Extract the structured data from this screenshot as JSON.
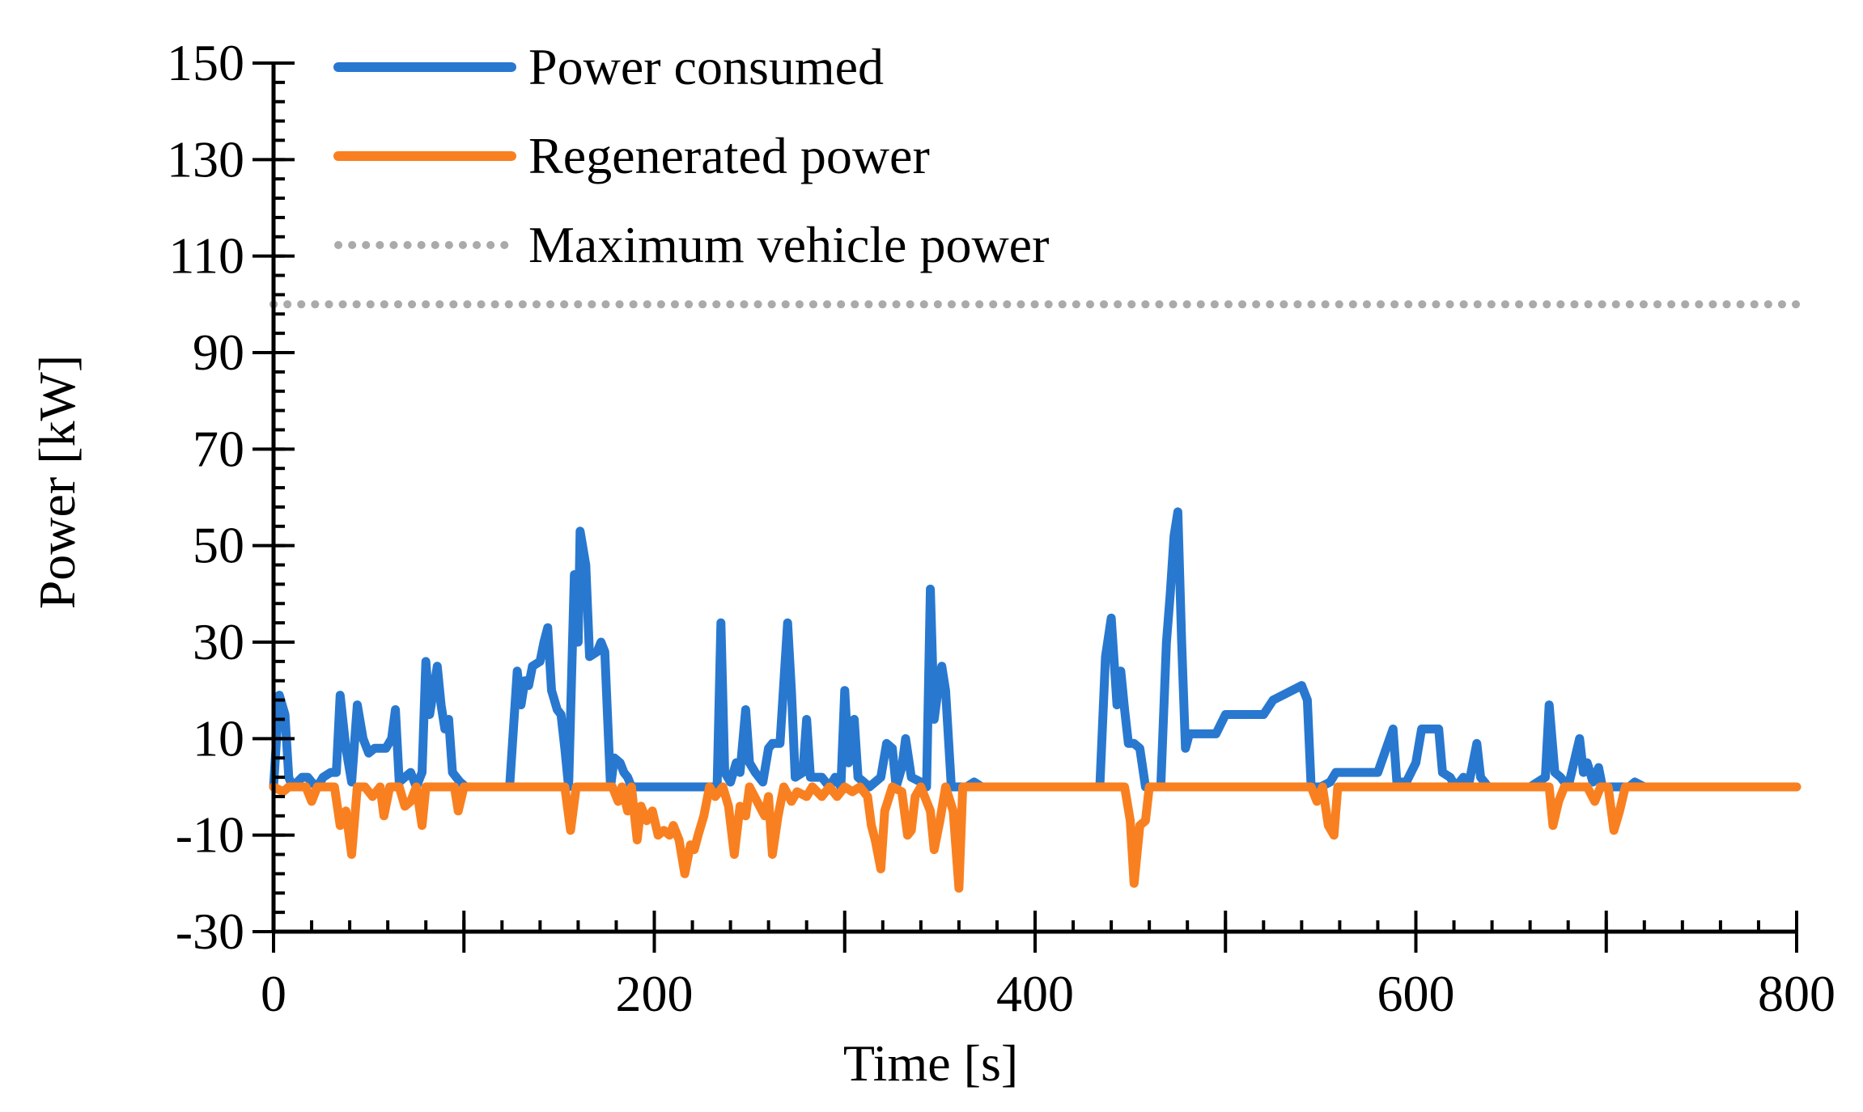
{
  "chart_data": {
    "type": "line",
    "xlabel": "Time [s]",
    "ylabel": "Power [kW]",
    "xlim": [
      0,
      800
    ],
    "ylim": [
      -30,
      150
    ],
    "x_ticks": [
      0,
      200,
      400,
      600,
      800
    ],
    "y_ticks": [
      -30,
      -10,
      10,
      30,
      50,
      70,
      90,
      110,
      130,
      150
    ],
    "grid": false,
    "legend_position": "top-left",
    "series": [
      {
        "name": "Power consumed",
        "color": "#2878d0",
        "style": "solid",
        "points": [
          [
            0,
            0
          ],
          [
            3,
            19
          ],
          [
            6,
            15
          ],
          [
            8,
            2
          ],
          [
            10,
            0
          ],
          [
            15,
            2
          ],
          [
            18,
            2
          ],
          [
            20,
            1
          ],
          [
            23,
            0
          ],
          [
            26,
            2
          ],
          [
            30,
            3
          ],
          [
            33,
            3
          ],
          [
            35,
            19
          ],
          [
            38,
            8
          ],
          [
            41,
            1
          ],
          [
            44,
            17
          ],
          [
            47,
            10
          ],
          [
            50,
            7
          ],
          [
            53,
            8
          ],
          [
            56,
            8
          ],
          [
            59,
            8
          ],
          [
            62,
            10
          ],
          [
            64,
            16
          ],
          [
            66,
            1
          ],
          [
            69,
            2
          ],
          [
            72,
            3
          ],
          [
            75,
            0
          ],
          [
            78,
            3
          ],
          [
            80,
            26
          ],
          [
            82,
            15
          ],
          [
            84,
            20
          ],
          [
            86,
            25
          ],
          [
            88,
            17
          ],
          [
            90,
            12
          ],
          [
            92,
            14
          ],
          [
            94,
            3
          ],
          [
            96,
            2
          ],
          [
            98,
            1
          ],
          [
            101,
            0
          ],
          [
            105,
            0
          ],
          [
            124,
            0
          ],
          [
            128,
            24
          ],
          [
            130,
            17
          ],
          [
            132,
            22
          ],
          [
            134,
            21
          ],
          [
            136,
            25
          ],
          [
            140,
            26
          ],
          [
            142,
            30
          ],
          [
            144,
            33
          ],
          [
            146,
            20
          ],
          [
            149,
            16
          ],
          [
            151,
            15
          ],
          [
            153,
            8
          ],
          [
            155,
            0
          ],
          [
            158,
            44
          ],
          [
            160,
            30
          ],
          [
            161,
            53
          ],
          [
            164,
            46
          ],
          [
            166,
            27
          ],
          [
            170,
            28
          ],
          [
            172,
            30
          ],
          [
            174,
            28
          ],
          [
            177,
            0
          ],
          [
            179,
            6
          ],
          [
            182,
            5
          ],
          [
            184,
            3
          ],
          [
            186,
            2
          ],
          [
            188,
            0
          ],
          [
            192,
            0
          ],
          [
            228,
            0
          ],
          [
            233,
            0
          ],
          [
            235,
            34
          ],
          [
            237,
            3
          ],
          [
            240,
            1
          ],
          [
            243,
            5
          ],
          [
            245,
            3
          ],
          [
            248,
            16
          ],
          [
            250,
            5
          ],
          [
            253,
            3
          ],
          [
            257,
            1
          ],
          [
            260,
            8
          ],
          [
            262,
            9
          ],
          [
            266,
            9
          ],
          [
            270,
            34
          ],
          [
            272,
            20
          ],
          [
            274,
            2
          ],
          [
            278,
            3
          ],
          [
            280,
            14
          ],
          [
            282,
            2
          ],
          [
            285,
            2
          ],
          [
            288,
            2
          ],
          [
            292,
            0
          ],
          [
            295,
            2
          ],
          [
            298,
            0
          ],
          [
            300,
            20
          ],
          [
            302,
            5
          ],
          [
            305,
            14
          ],
          [
            307,
            2
          ],
          [
            310,
            1
          ],
          [
            313,
            0
          ],
          [
            316,
            1
          ],
          [
            319,
            2
          ],
          [
            322,
            9
          ],
          [
            325,
            8
          ],
          [
            327,
            0
          ],
          [
            330,
            4
          ],
          [
            332,
            10
          ],
          [
            335,
            2
          ],
          [
            340,
            1
          ],
          [
            343,
            0
          ],
          [
            345,
            41
          ],
          [
            347,
            14
          ],
          [
            349,
            20
          ],
          [
            351,
            25
          ],
          [
            353,
            20
          ],
          [
            356,
            0
          ],
          [
            360,
            0
          ],
          [
            364,
            0
          ],
          [
            368,
            1
          ],
          [
            372,
            0
          ],
          [
            380,
            0
          ],
          [
            400,
            0
          ],
          [
            434,
            0
          ],
          [
            437,
            27
          ],
          [
            440,
            35
          ],
          [
            443,
            17
          ],
          [
            445,
            24
          ],
          [
            447,
            16
          ],
          [
            449,
            9
          ],
          [
            452,
            9
          ],
          [
            455,
            8
          ],
          [
            458,
            0
          ],
          [
            462,
            0
          ],
          [
            466,
            0
          ],
          [
            469,
            30
          ],
          [
            471,
            40
          ],
          [
            473,
            52
          ],
          [
            475,
            57
          ],
          [
            477,
            30
          ],
          [
            479,
            8
          ],
          [
            481,
            11
          ],
          [
            495,
            11
          ],
          [
            500,
            15
          ],
          [
            520,
            15
          ],
          [
            525,
            18
          ],
          [
            540,
            21
          ],
          [
            543,
            18
          ],
          [
            545,
            0
          ],
          [
            550,
            0
          ],
          [
            555,
            1
          ],
          [
            558,
            3
          ],
          [
            580,
            3
          ],
          [
            588,
            12
          ],
          [
            590,
            1
          ],
          [
            595,
            1
          ],
          [
            600,
            5
          ],
          [
            603,
            12
          ],
          [
            608,
            12
          ],
          [
            612,
            12
          ],
          [
            614,
            3
          ],
          [
            618,
            2
          ],
          [
            621,
            0
          ],
          [
            625,
            2
          ],
          [
            628,
            1
          ],
          [
            632,
            9
          ],
          [
            634,
            2
          ],
          [
            638,
            0
          ],
          [
            660,
            0
          ],
          [
            668,
            2
          ],
          [
            670,
            17
          ],
          [
            673,
            3
          ],
          [
            676,
            2
          ],
          [
            680,
            0
          ],
          [
            686,
            10
          ],
          [
            688,
            3
          ],
          [
            690,
            5
          ],
          [
            693,
            1
          ],
          [
            696,
            4
          ],
          [
            698,
            0
          ],
          [
            700,
            0
          ],
          [
            712,
            0
          ],
          [
            715,
            1
          ],
          [
            720,
            0
          ],
          [
            750,
            0
          ]
        ]
      },
      {
        "name": "Regenerated power",
        "color": "#f98020",
        "style": "solid",
        "points": [
          [
            0,
            0
          ],
          [
            5,
            -1
          ],
          [
            8,
            0
          ],
          [
            12,
            0
          ],
          [
            17,
            0
          ],
          [
            20,
            -3
          ],
          [
            23,
            0
          ],
          [
            28,
            0
          ],
          [
            32,
            0
          ],
          [
            35,
            -8
          ],
          [
            38,
            -5
          ],
          [
            41,
            -14
          ],
          [
            44,
            0
          ],
          [
            48,
            0
          ],
          [
            52,
            -2
          ],
          [
            56,
            0
          ],
          [
            58,
            -6
          ],
          [
            61,
            0
          ],
          [
            66,
            0
          ],
          [
            69,
            -4
          ],
          [
            72,
            -3
          ],
          [
            75,
            0
          ],
          [
            78,
            -8
          ],
          [
            80,
            0
          ],
          [
            85,
            0
          ],
          [
            95,
            0
          ],
          [
            97,
            -5
          ],
          [
            100,
            0
          ],
          [
            140,
            0
          ],
          [
            153,
            0
          ],
          [
            156,
            -9
          ],
          [
            159,
            0
          ],
          [
            170,
            0
          ],
          [
            178,
            0
          ],
          [
            181,
            -3
          ],
          [
            183,
            0
          ],
          [
            186,
            -5
          ],
          [
            188,
            0
          ],
          [
            191,
            -11
          ],
          [
            193,
            -4
          ],
          [
            196,
            -7
          ],
          [
            199,
            -5
          ],
          [
            202,
            -10
          ],
          [
            205,
            -9
          ],
          [
            208,
            -10
          ],
          [
            210,
            -8
          ],
          [
            213,
            -11
          ],
          [
            216,
            -18
          ],
          [
            219,
            -12
          ],
          [
            221,
            -13
          ],
          [
            223,
            -10
          ],
          [
            226,
            -6
          ],
          [
            229,
            0
          ],
          [
            232,
            -2
          ],
          [
            236,
            0
          ],
          [
            239,
            -4
          ],
          [
            242,
            -14
          ],
          [
            245,
            -4
          ],
          [
            248,
            -6
          ],
          [
            250,
            0
          ],
          [
            254,
            -3
          ],
          [
            258,
            -6
          ],
          [
            260,
            -2
          ],
          [
            262,
            -14
          ],
          [
            265,
            -6
          ],
          [
            268,
            0
          ],
          [
            272,
            -3
          ],
          [
            275,
            -1
          ],
          [
            280,
            -2
          ],
          [
            283,
            0
          ],
          [
            288,
            -2
          ],
          [
            292,
            0
          ],
          [
            296,
            -2
          ],
          [
            300,
            0
          ],
          [
            304,
            -1
          ],
          [
            308,
            0
          ],
          [
            312,
            -2
          ],
          [
            314,
            -8
          ],
          [
            316,
            -11
          ],
          [
            319,
            -17
          ],
          [
            321,
            -5
          ],
          [
            325,
            0
          ],
          [
            330,
            -1
          ],
          [
            333,
            -10
          ],
          [
            335,
            -9
          ],
          [
            337,
            -2
          ],
          [
            340,
            0
          ],
          [
            345,
            -5
          ],
          [
            347,
            -13
          ],
          [
            350,
            -7
          ],
          [
            353,
            0
          ],
          [
            357,
            -5
          ],
          [
            360,
            -21
          ],
          [
            362,
            0
          ],
          [
            380,
            0
          ],
          [
            440,
            0
          ],
          [
            447,
            0
          ],
          [
            450,
            -7
          ],
          [
            452,
            -20
          ],
          [
            455,
            -8
          ],
          [
            458,
            -7
          ],
          [
            460,
            0
          ],
          [
            500,
            0
          ],
          [
            545,
            0
          ],
          [
            548,
            -3
          ],
          [
            551,
            0
          ],
          [
            554,
            -8
          ],
          [
            557,
            -10
          ],
          [
            559,
            0
          ],
          [
            570,
            0
          ],
          [
            590,
            0
          ],
          [
            600,
            0
          ],
          [
            650,
            0
          ],
          [
            670,
            0
          ],
          [
            672,
            -8
          ],
          [
            675,
            -3
          ],
          [
            678,
            0
          ],
          [
            690,
            0
          ],
          [
            694,
            -3
          ],
          [
            697,
            0
          ],
          [
            701,
            0
          ],
          [
            704,
            -9
          ],
          [
            707,
            -5
          ],
          [
            710,
            0
          ],
          [
            715,
            0
          ],
          [
            730,
            0
          ],
          [
            800,
            0
          ]
        ]
      },
      {
        "name": "Maximum vehicle power",
        "color": "#aaaaaa",
        "style": "dotted",
        "points": [
          [
            0,
            100
          ],
          [
            800,
            100
          ]
        ]
      }
    ]
  }
}
